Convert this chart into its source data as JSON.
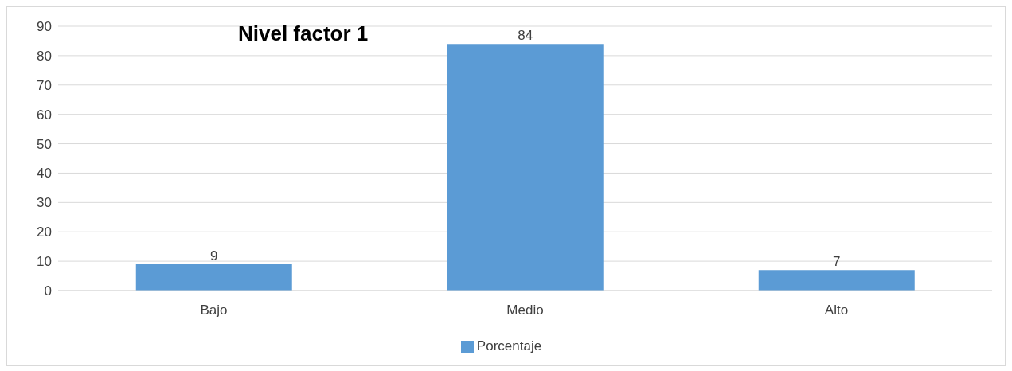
{
  "chart_data": {
    "type": "bar",
    "title": "Nivel factor 1",
    "categories": [
      "Bajo",
      "Medio",
      "Alto"
    ],
    "series": [
      {
        "name": "Porcentaje",
        "color": "#5b9bd5",
        "values": [
          9,
          84,
          7
        ]
      }
    ],
    "ylim": [
      0,
      90
    ],
    "yticks": [
      0,
      10,
      20,
      30,
      40,
      50,
      60,
      70,
      80,
      90
    ],
    "grid": "y",
    "legend": "bottom",
    "data_labels": true
  }
}
